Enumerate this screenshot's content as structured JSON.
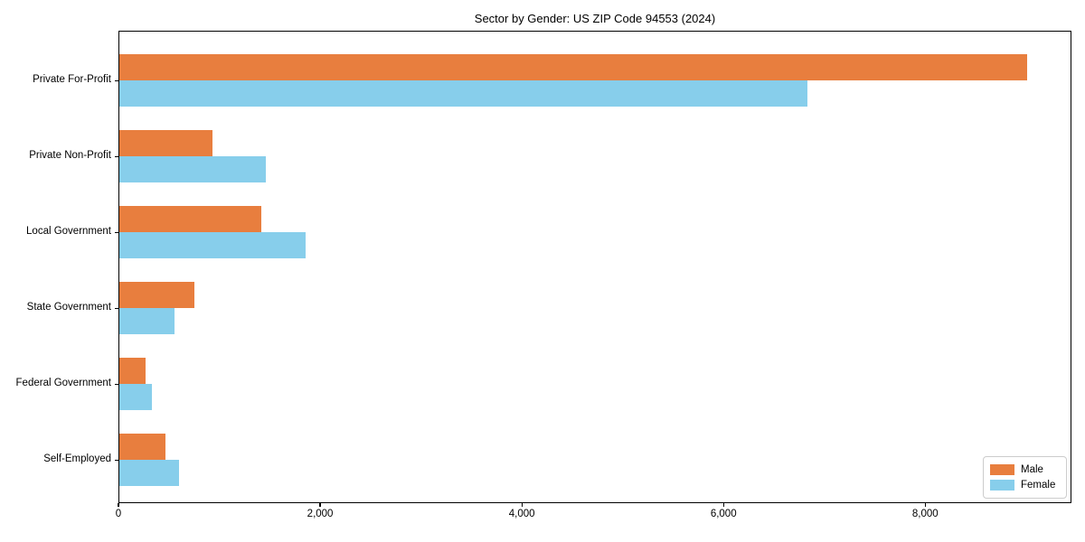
{
  "chart_data": {
    "type": "bar",
    "orientation": "horizontal",
    "title": "Sector by Gender: US ZIP Code 94553 (2024)",
    "categories": [
      "Private For-Profit",
      "Private Non-Profit",
      "Local Government",
      "State Government",
      "Federal Government",
      "Self-Employed"
    ],
    "series": [
      {
        "name": "Male",
        "color": "#E87E3E",
        "values": [
          9000,
          925,
          1410,
          740,
          258,
          460
        ]
      },
      {
        "name": "Female",
        "color": "#87CEEB",
        "values": [
          6825,
          1450,
          1850,
          545,
          320,
          588
        ]
      }
    ],
    "xlabel": "",
    "ylabel": "",
    "xlim": [
      0,
      9450
    ],
    "x_ticks": [
      {
        "value": 0,
        "label": "0"
      },
      {
        "value": 2000,
        "label": "2,000"
      },
      {
        "value": 4000,
        "label": "4,000"
      },
      {
        "value": 6000,
        "label": "6,000"
      },
      {
        "value": 8000,
        "label": "8,000"
      }
    ],
    "grid": false,
    "legend": {
      "position": "lower right"
    },
    "axis_color": "#000000",
    "background": "#ffffff"
  }
}
